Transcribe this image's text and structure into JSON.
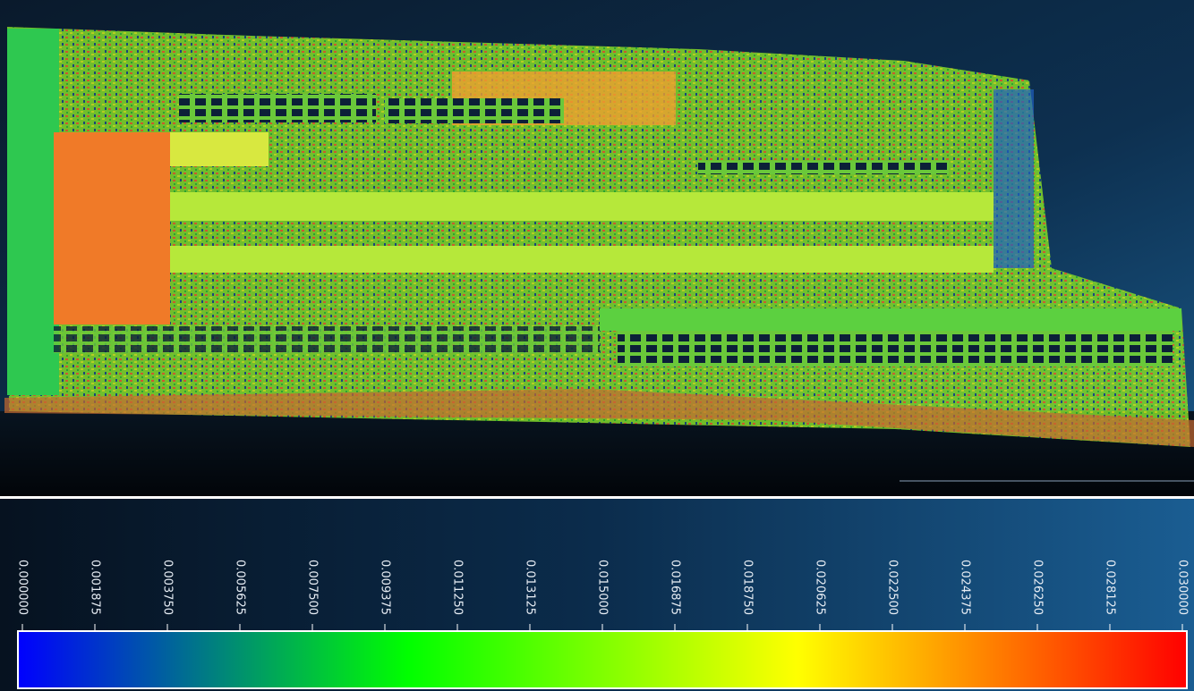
{
  "color_scale": {
    "xlim": [
      0,
      0.03
    ],
    "colors": [
      "#0000ff",
      "#00ff00",
      "#ffff00",
      "#ff0000"
    ],
    "xticks": [
      {
        "value": 0,
        "label": "0.000000"
      },
      {
        "value": 0.001875,
        "label": "0.001875"
      },
      {
        "value": 0.00375,
        "label": "0.003750"
      },
      {
        "value": 0.005625,
        "label": "0.005625"
      },
      {
        "value": 0.0075,
        "label": "0.007500"
      },
      {
        "value": 0.009375,
        "label": "0.009375"
      },
      {
        "value": 0.01125,
        "label": "0.011250"
      },
      {
        "value": 0.013125,
        "label": "0.013125"
      },
      {
        "value": 0.015,
        "label": "0.015000"
      },
      {
        "value": 0.016875,
        "label": "0.016875"
      },
      {
        "value": 0.01875,
        "label": "0.018750"
      },
      {
        "value": 0.020625,
        "label": "0.020625"
      },
      {
        "value": 0.0225,
        "label": "0.022500"
      },
      {
        "value": 0.024375,
        "label": "0.024375"
      },
      {
        "value": 0.02625,
        "label": "0.026250"
      },
      {
        "value": 0.028125,
        "label": "0.028125"
      },
      {
        "value": 0.03,
        "label": "0.030000"
      }
    ]
  }
}
